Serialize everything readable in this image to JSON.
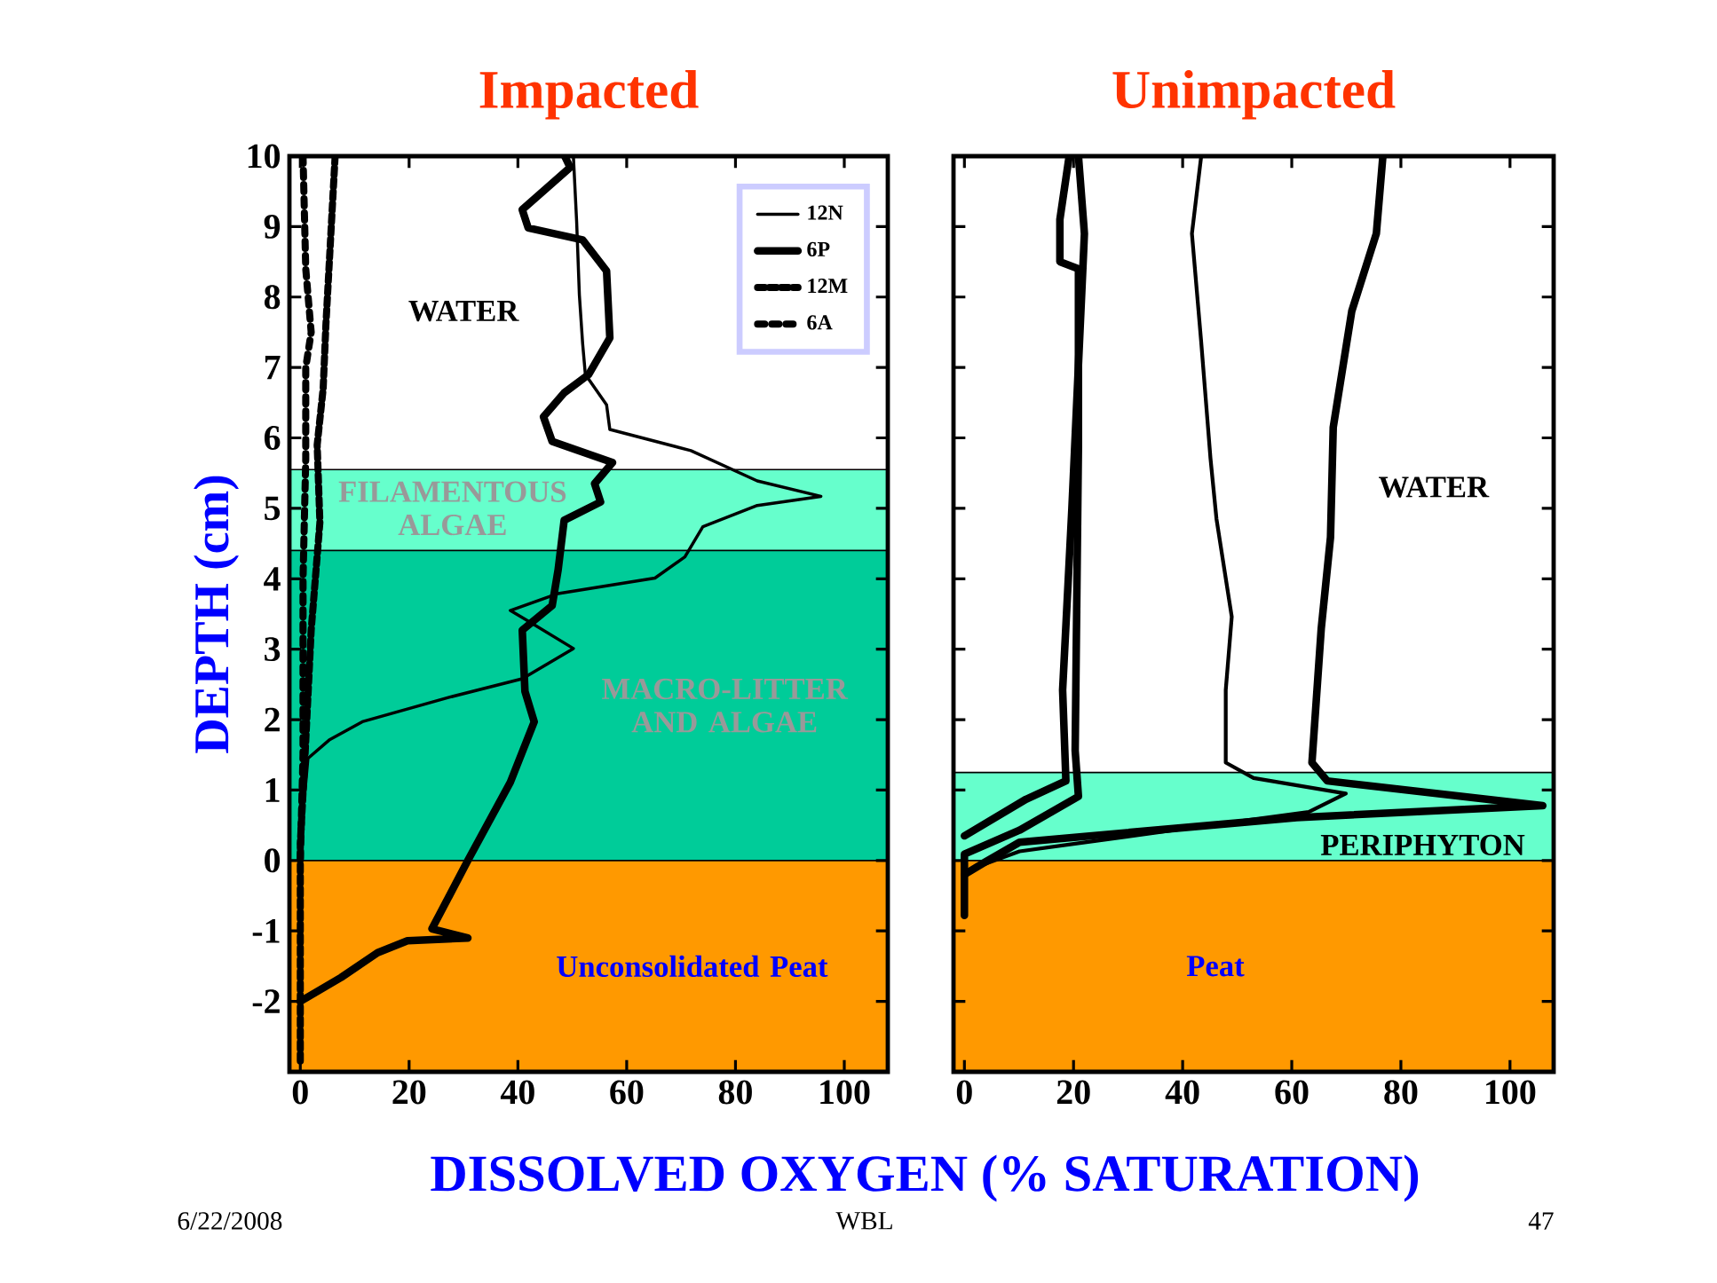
{
  "chart_data": [
    {
      "type": "line",
      "title": "Impacted",
      "xlabel": "DISSOLVED  OXYGEN (% SATURATION)",
      "ylabel": "DEPTH  (cm)",
      "xlim": [
        -2,
        108
      ],
      "ylim": [
        -3,
        10
      ],
      "xticks": [
        0,
        20,
        40,
        60,
        80,
        100
      ],
      "yticks": [
        -2,
        -1,
        0,
        1,
        2,
        3,
        4,
        5,
        6,
        7,
        8,
        9,
        10
      ],
      "legend": "top right",
      "bands": [
        {
          "axis": "y",
          "from": 4.4,
          "to": 5.55,
          "color": "#66ffcc",
          "label": "FILAMENTOUS ALGAE"
        },
        {
          "axis": "y",
          "from": 0,
          "to": 4.4,
          "color": "#00cc99",
          "label": "MACRO-LITTER AND ALGAE"
        },
        {
          "axis": "y",
          "from": -3,
          "to": 0,
          "color": "#ff9900",
          "label": "Unconsolidated Peat"
        }
      ],
      "annotations": [
        "WATER",
        "6/22/2008",
        "WBL",
        "47"
      ],
      "series": [
        {
          "name": "12N",
          "color": "#000000",
          "line_style": "solid",
          "x": [
            50.2,
            50.8,
            51.3,
            51.9,
            52.4,
            56.3,
            56.9,
            71.8,
            84.0,
            95.7,
            84.0,
            74.0,
            70.7,
            65.2,
            47.4,
            38.6,
            41.9,
            50.2,
            40.8,
            27.5,
            11.4,
            5.3,
            1.4,
            0.5,
            0
          ],
          "values": [
            10.0,
            9.07,
            8.03,
            7.34,
            6.9,
            6.47,
            6.12,
            5.82,
            5.39,
            5.17,
            5.04,
            4.74,
            4.31,
            4.01,
            3.79,
            3.55,
            3.4,
            3.01,
            2.58,
            2.32,
            1.97,
            1.71,
            1.45,
            0.67,
            0
          ]
        },
        {
          "name": "6P",
          "color": "#000000",
          "line_style": "solid",
          "x": [
            48.6,
            49.6,
            40.8,
            41.9,
            51.9,
            56.3,
            56.9,
            53.0,
            48.5,
            44.7,
            46.3,
            57.4,
            54.1,
            55.2,
            48.5,
            47.4,
            46.3,
            40.8,
            41.3,
            43.0,
            38.6,
            30.8,
            24.2,
            30.8,
            19.7,
            14.2,
            7.5,
            0
          ],
          "values": [
            10,
            9.84,
            9.24,
            8.98,
            8.81,
            8.37,
            7.42,
            6.9,
            6.64,
            6.3,
            5.95,
            5.65,
            5.35,
            5.09,
            4.83,
            4.13,
            3.62,
            3.27,
            2.4,
            1.97,
            1.11,
            0,
            -0.97,
            -1.1,
            -1.14,
            -1.31,
            -1.66,
            -2.0
          ]
        },
        {
          "name": "12M",
          "color": "#000000",
          "line_style": "dotted",
          "x": [
            6.4,
            5.9,
            4.7,
            4.2,
            3.1,
            3.6,
            2.0,
            0.9,
            0,
            0
          ],
          "values": [
            10,
            9.3,
            7.6,
            6.7,
            5.9,
            4.8,
            3.27,
            1.54,
            0.24,
            -2.9
          ]
        },
        {
          "name": "6A",
          "color": "#000000",
          "line_style": "dashed",
          "x": [
            0.5,
            1,
            2,
            1,
            1,
            0.5,
            0.5,
            0
          ],
          "values": [
            10,
            8.4,
            7.5,
            7.0,
            5.7,
            4.0,
            1.5,
            0
          ]
        }
      ]
    },
    {
      "type": "line",
      "title": "Unimpacted",
      "xlim": [
        -2,
        108
      ],
      "ylim": [
        -3,
        10
      ],
      "xticks": [
        0,
        20,
        40,
        60,
        80,
        100
      ],
      "yticks": [
        -2,
        -1,
        0,
        1,
        2,
        3,
        4,
        5,
        6,
        7,
        8,
        9,
        10
      ],
      "tick_labels": "x",
      "bands": [
        {
          "axis": "y",
          "from": 0,
          "to": 1.25,
          "color": "#66ffcc",
          "label": "PERIPHYTON"
        },
        {
          "axis": "y",
          "from": -3,
          "to": 0,
          "color": "#ff9900",
          "label": "Peat"
        }
      ],
      "annotations": [
        "WATER"
      ],
      "series": [
        {
          "color": "#000000",
          "line_style": "solid",
          "x": [
            43.4,
            41.7,
            43.4,
            45.1,
            46.2,
            49,
            47.9,
            47.9,
            53,
            69.9,
            63.1,
            38.3,
            10.1,
            2.3,
            0
          ],
          "values": [
            10,
            8.9,
            7.36,
            5.71,
            4.85,
            3.46,
            2.42,
            1.39,
            1.17,
            0.95,
            0.69,
            0.43,
            0.13,
            -0.09,
            -0.2
          ]
        },
        {
          "color": "#000000",
          "line_style": "solid",
          "x": [
            76.7,
            75.5,
            71,
            67.6,
            67.1,
            65.4,
            63.7,
            66.5,
            106,
            60.9,
            10.1,
            3.4,
            0
          ],
          "values": [
            10,
            8.9,
            7.8,
            6.15,
            4.59,
            3.29,
            1.39,
            1.13,
            0.78,
            0.61,
            0.26,
            -0.04,
            -0.2
          ]
        },
        {
          "color": "#000000",
          "line_style": "solid",
          "x": [
            19.2,
            17.5,
            17.5,
            20.9,
            20.9,
            20.3,
            20.9,
            10.1,
            0,
            0
          ],
          "values": [
            10,
            9.1,
            8.5,
            8.4,
            5.9,
            1.56,
            0.91,
            0.43,
            0.09,
            -0.78
          ]
        },
        {
          "color": "#000000",
          "line_style": "solid",
          "x": [
            20.9,
            22,
            19.7,
            18,
            18.6,
            11.3,
            0
          ],
          "values": [
            10,
            8.9,
            5.0,
            2.42,
            1.13,
            0.87,
            0.35
          ]
        }
      ]
    }
  ]
}
